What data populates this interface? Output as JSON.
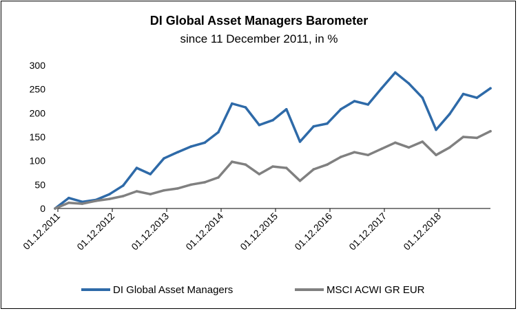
{
  "chart_data": {
    "type": "line",
    "title": "DI Global Asset Managers Barometer",
    "subtitle": "since 11 December  2011, in %",
    "xlabel": "",
    "ylabel": "",
    "ylim": [
      0,
      300
    ],
    "y_ticks": [
      "0",
      "50",
      "100",
      "150",
      "200",
      "250",
      "300"
    ],
    "x_ticks": [
      "01.12.2011",
      "01.12.2012",
      "01.12.2013",
      "01.12.2014",
      "01.12.2015",
      "01.12.2016",
      "01.12.2017",
      "01.12.2018"
    ],
    "x": [
      "12/2011",
      "03/2012",
      "06/2012",
      "09/2012",
      "12/2012",
      "03/2013",
      "06/2013",
      "09/2013",
      "12/2013",
      "03/2014",
      "06/2014",
      "09/2014",
      "12/2014",
      "03/2015",
      "06/2015",
      "09/2015",
      "12/2015",
      "03/2016",
      "06/2016",
      "09/2016",
      "12/2016",
      "03/2017",
      "06/2017",
      "09/2017",
      "12/2017",
      "03/2018",
      "06/2018",
      "09/2018",
      "12/2018",
      "03/2019",
      "06/2019",
      "09/2019",
      "11/2019"
    ],
    "series": [
      {
        "name": "DI Global Asset Managers",
        "color": "#2e6aa8",
        "values": [
          0,
          22,
          14,
          18,
          30,
          48,
          85,
          72,
          105,
          118,
          130,
          138,
          160,
          220,
          212,
          175,
          185,
          208,
          140,
          172,
          178,
          208,
          225,
          218,
          252,
          285,
          262,
          232,
          165,
          198,
          240,
          232,
          252
        ]
      },
      {
        "name": "MSCI ACWI GR EUR",
        "color": "#808080",
        "values": [
          0,
          12,
          10,
          16,
          20,
          26,
          36,
          30,
          38,
          42,
          50,
          55,
          65,
          98,
          92,
          72,
          88,
          85,
          58,
          82,
          92,
          108,
          118,
          112,
          125,
          138,
          128,
          140,
          112,
          128,
          150,
          148,
          162
        ]
      }
    ],
    "legend_position": "bottom"
  }
}
